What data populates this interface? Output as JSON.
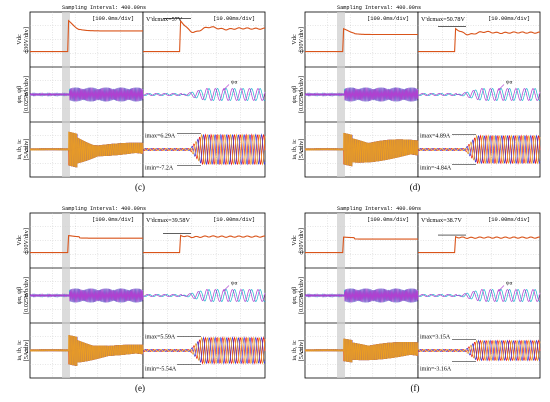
{
  "chart_data": [
    {
      "type": "line",
      "panel_label": "(c)",
      "header": "Sampling Interval: 400.00ns",
      "left_time_scale": "[100.0ms/div]",
      "right_time_scale": "[10.00ms/div]",
      "ylabels": [
        "Vdc [30V/div]",
        "ψα, ψβ [0.025Wb/div]",
        "ia, ib, ic [5A/div]"
      ],
      "vdc_annotation": "V'dcmax=57V",
      "flux_annotation": "ψα",
      "imax_annotation": "imax=6.29A",
      "imin_annotation": "imin=-7.2A",
      "series": [
        {
          "name": "Vdc",
          "values": [
            0,
            0,
            0,
            1,
            1.3,
            0.8,
            0.85,
            0.9,
            0.9
          ]
        },
        {
          "name": "ia",
          "values": [
            0,
            0,
            0,
            6.29,
            -7.2,
            4,
            -4,
            3,
            -3
          ]
        }
      ]
    },
    {
      "type": "line",
      "panel_label": "(d)",
      "header": "Sampling Interval: 400.00ns",
      "left_time_scale": "[100.0ms/div]",
      "right_time_scale": "[10.00ms/div]",
      "ylabels": [
        "Vdc [30V/div]",
        "ψα, ψβ [0.025Wb/div]",
        "ia, ib, ic [5A/div]"
      ],
      "vdc_annotation": "V'dcmax=50.78V",
      "flux_annotation": "ψα",
      "imax_annotation": "imax=4.89A",
      "imin_annotation": "imin=-4.84A",
      "series": [
        {
          "name": "Vdc",
          "values": [
            0,
            0,
            0,
            1,
            1.05,
            0.9,
            0.9,
            0.9,
            0.9
          ]
        },
        {
          "name": "ia",
          "values": [
            0,
            0,
            0,
            4.89,
            -4.84,
            4.8,
            -4.8,
            4.8,
            -4.8
          ]
        }
      ]
    },
    {
      "type": "line",
      "panel_label": "(e)",
      "header": "Sampling Interval: 400.00ns",
      "left_time_scale": "[100.0ms/div]",
      "right_time_scale": "[10.00ms/div]",
      "ylabels": [
        "Vdc [30V/div]",
        "ψα, ψβ [0.025Wb/div]",
        "ia, ib, ic [5A/div]"
      ],
      "vdc_annotation": "V'dcmax=39.58V",
      "flux_annotation": "ψα",
      "imax_annotation": "imax=5.59A",
      "imin_annotation": "imin=-5.54A",
      "series": [
        {
          "name": "Vdc",
          "values": [
            0,
            0,
            0,
            1,
            0.9,
            0.9,
            0.9,
            0.9,
            0.9
          ]
        },
        {
          "name": "ia",
          "values": [
            0,
            0,
            0,
            5.59,
            -5.54,
            5,
            -5,
            5,
            -5
          ]
        }
      ]
    },
    {
      "type": "line",
      "panel_label": "(f)",
      "header": "Sampling Interval: 400.00ns",
      "left_time_scale": "[100.0ms/div]",
      "right_time_scale": "[10.00ms/div]",
      "ylabels": [
        "Vdc [30V/div]",
        "ψα, ψβ [0.025Wb/div]",
        "ia, ib, ic [5A/div]"
      ],
      "vdc_annotation": "V'dcmax=38.7V",
      "flux_annotation": "ψα",
      "imax_annotation": "imax=3.15A",
      "imin_annotation": "imin=-3.16A",
      "series": [
        {
          "name": "Vdc",
          "values": [
            0,
            0,
            0,
            1,
            0.9,
            0.9,
            0.9,
            0.9,
            0.9
          ]
        },
        {
          "name": "ia",
          "values": [
            0,
            0,
            0,
            3.15,
            -3.16,
            3.1,
            -3.1,
            3.1,
            -3.1
          ]
        }
      ]
    }
  ],
  "colors": {
    "vdc": "#d9541a",
    "flux_a": "#1fb7cf",
    "flux_b": "#b040d0",
    "ia": "#e8161b",
    "ib": "#3b3bd6",
    "ic": "#f0a020",
    "grid": "#bfbfbf",
    "shade": "#cfcfcf"
  }
}
